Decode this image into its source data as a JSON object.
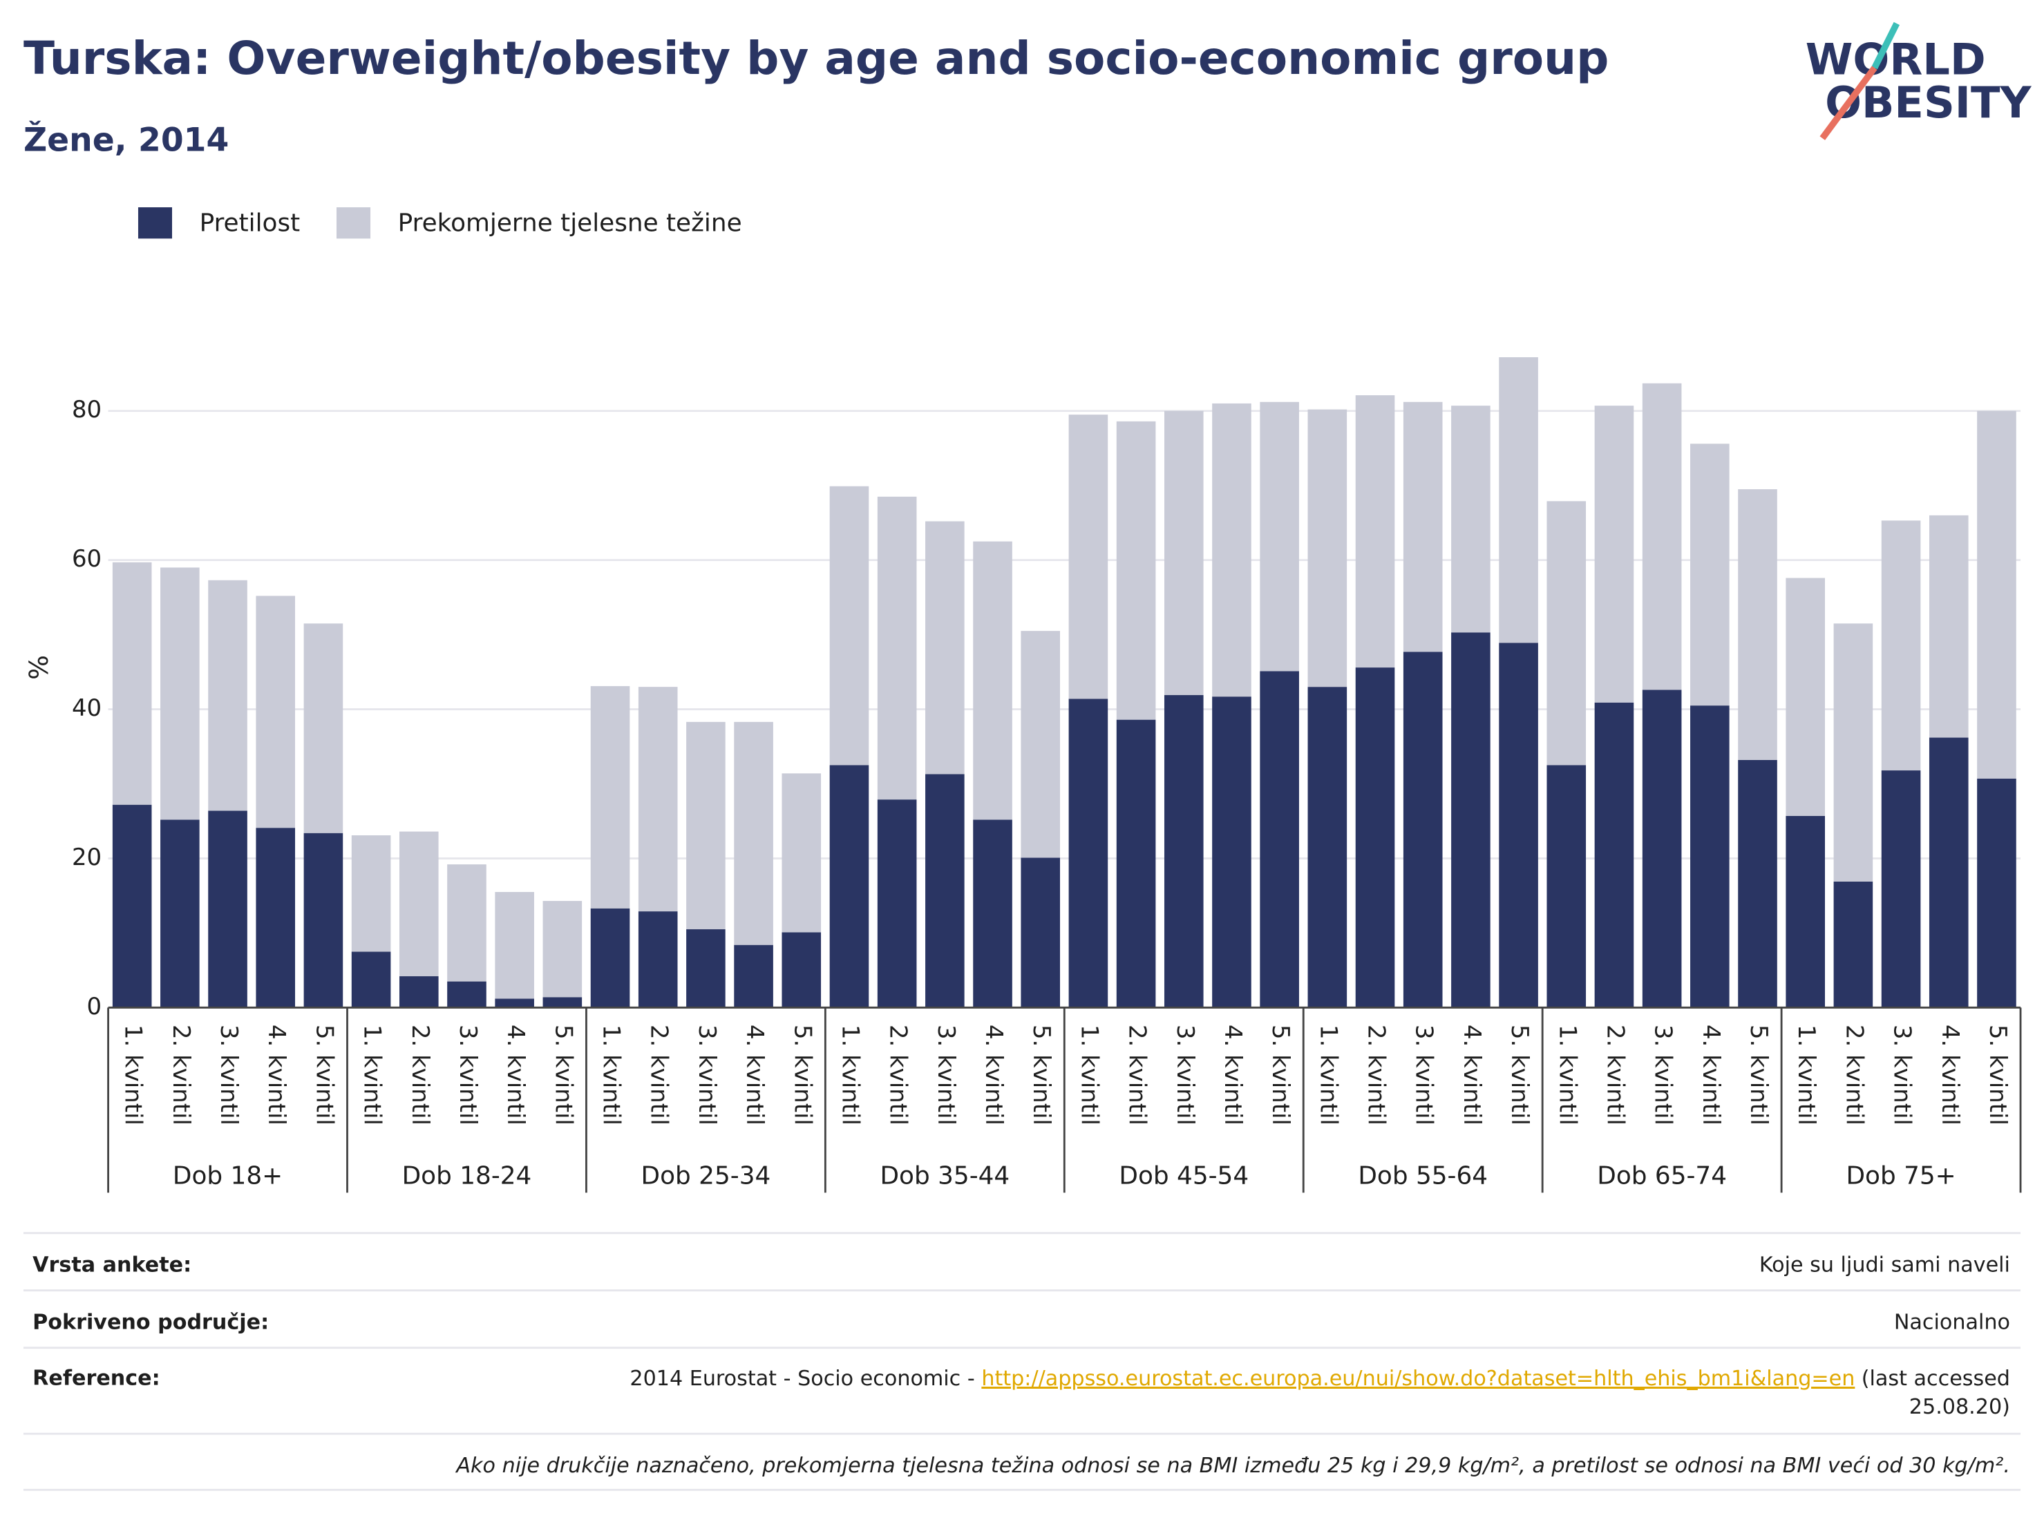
{
  "chart_data": {
    "type": "stacked_bar",
    "title": "Turska: Overweight/obesity by age and socio-economic group",
    "subtitle": "Žene, 2014",
    "y_label": "%",
    "logo": [
      "WORLD",
      "OBESITY"
    ],
    "groups": [
      "Dob 18+",
      "Dob 18-24",
      "Dob 25-34",
      "Dob 35-44",
      "Dob 45-54",
      "Dob 55-64",
      "Dob 65-74",
      "Dob 75+"
    ],
    "categories": [
      "1. kvintil",
      "2. kvintil",
      "3. kvintil",
      "4. kvintil",
      "5. kvintil",
      "1. kvintil",
      "2. kvintil",
      "3. kvintil",
      "4. kvintil",
      "5. kvintil",
      "1. kvintil",
      "2. kvintil",
      "3. kvintil",
      "4. kvintil",
      "5. kvintil",
      "1. kvintil",
      "2. kvintil",
      "3. kvintil",
      "4. kvintil",
      "5. kvintil",
      "1. kvintil",
      "2. kvintil",
      "3. kvintil",
      "4. kvintil",
      "5. kvintil",
      "1. kvintil",
      "2. kvintil",
      "3. kvintil",
      "4. kvintil",
      "5. kvintil",
      "1. kvintil",
      "2. kvintil",
      "3. kvintil",
      "4. kvintil",
      "5. kvintil",
      "1. kvintil",
      "2. kvintil",
      "3. kvintil",
      "4. kvintil",
      "5. kvintil"
    ],
    "series": [
      {
        "name": "Pretilost",
        "color": "#2a3563",
        "values": [
          27.2,
          25.2,
          26.4,
          24.1,
          23.4,
          7.5,
          4.2,
          3.5,
          1.2,
          1.4,
          13.3,
          12.9,
          10.5,
          8.4,
          10.1,
          32.5,
          27.9,
          31.3,
          25.2,
          20.1,
          41.4,
          38.6,
          41.9,
          41.7,
          45.1,
          43.0,
          45.6,
          47.7,
          50.3,
          48.9,
          32.5,
          40.9,
          42.6,
          40.5,
          33.2,
          25.7,
          16.9,
          31.8,
          36.2,
          30.7
        ]
      },
      {
        "name": "Prekomjerne tjelesne težine",
        "color": "#c9cbd7",
        "values": [
          32.5,
          33.8,
          30.9,
          31.1,
          28.1,
          15.6,
          19.4,
          15.7,
          14.3,
          12.9,
          29.8,
          30.1,
          27.8,
          29.9,
          21.3,
          37.4,
          40.6,
          33.9,
          37.3,
          30.4,
          38.1,
          40.0,
          38.1,
          39.3,
          36.1,
          37.2,
          36.5,
          33.5,
          30.4,
          38.3,
          35.4,
          39.8,
          41.1,
          35.1,
          36.3,
          31.9,
          34.6,
          33.5,
          29.8,
          49.3
        ]
      }
    ],
    "ylim": [
      0,
      90
    ],
    "yticks": [
      0,
      20,
      40,
      60,
      80
    ],
    "grid": true,
    "legend": "top-left"
  },
  "footer": {
    "rows": [
      {
        "label": "Vrsta ankete:",
        "value": "Koje su ljudi sami naveli"
      },
      {
        "label": "Pokriveno područje:",
        "value": "Nacionalno"
      },
      {
        "label": "Reference:",
        "prefix": "2014 Eurostat - Socio economic - ",
        "link": "http://appsso.eurostat.ec.europa.eu/nui/show.do?dataset=hlth_ehis_bm1i&lang=en",
        "after": [
          "(last accessed",
          "25.08.20)"
        ]
      }
    ],
    "note": "Ako nije drukčije naznačeno, prekomjerna tjelesna težina odnosi se na BMI između 25 kg i 29,9 kg/m², a pretilost se odnosi na BMI veći od 30 kg/m²."
  }
}
